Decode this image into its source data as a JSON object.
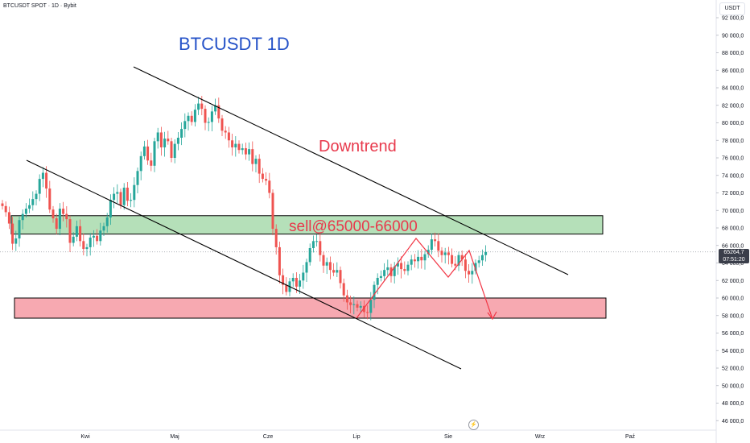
{
  "header": {
    "symbol_line": "BTCUSDT SPOT · 1D · Bybit"
  },
  "currency": "USDT",
  "price_tag": {
    "price": "65264,7",
    "countdown": "07:51:20"
  },
  "annotations": {
    "title": "BTCUSDT 1D",
    "downtrend": "Downtrend",
    "sell": "sell@65000-66000",
    "lightning_icon": "lightning-icon"
  },
  "colors": {
    "up": "#26a69a",
    "down": "#ef5350",
    "green_zone": "#b5e0b9",
    "red_zone": "#f7a9b1",
    "title": "#2552c8",
    "annotation_red": "#e8394c"
  },
  "chart_data": {
    "type": "candlestick",
    "x_ticks": [
      "Kwi",
      "Maj",
      "Cze",
      "Lip",
      "Sie",
      "Wrz",
      "Paź"
    ],
    "y_ticks": [
      "92 000,0",
      "90 000,0",
      "88 000,0",
      "86 000,0",
      "84 000,0",
      "82 000,0",
      "80 000,0",
      "78 000,0",
      "76 000,0",
      "74 000,0",
      "72 000,0",
      "70 000,0",
      "68 000,0",
      "66 000,0",
      "64 000,0",
      "62 000,0",
      "60 000,0",
      "58 000,0",
      "56 000,0",
      "54 000,0",
      "52 000,0",
      "50 000,0",
      "48 000,0",
      "46 000,0"
    ],
    "y_tick_values": [
      92000,
      90000,
      88000,
      86000,
      84000,
      82000,
      80000,
      78000,
      76000,
      74000,
      72000,
      70000,
      68000,
      66000,
      64000,
      62000,
      60000,
      58000,
      56000,
      54000,
      52000,
      50000,
      48000,
      46000
    ],
    "ylim": [
      45000,
      93000
    ],
    "last_price": 65264.7,
    "candles_close": [
      70500,
      69800,
      68500,
      66200,
      66800,
      68900,
      69600,
      70200,
      70600,
      71300,
      71900,
      73600,
      74300,
      72500,
      70100,
      69100,
      67900,
      70200,
      69600,
      69000,
      66300,
      67000,
      68200,
      66500,
      65600,
      65800,
      66900,
      67100,
      66500,
      67700,
      68200,
      69200,
      71200,
      71900,
      72100,
      70600,
      72600,
      71100,
      71200,
      72900,
      74500,
      76200,
      77300,
      75700,
      75100,
      77900,
      78900,
      77200,
      78200,
      77900,
      76000,
      77600,
      78300,
      79300,
      80200,
      80800,
      80100,
      81500,
      82200,
      81600,
      80000,
      80100,
      81300,
      82000,
      80500,
      79100,
      78900,
      78000,
      77200,
      77600,
      76900,
      77100,
      76400,
      77000,
      75300,
      75900,
      74200,
      73600,
      73400,
      72000,
      67900,
      65800,
      62600,
      61500,
      60700,
      61900,
      62300,
      61300,
      62000,
      62900,
      64100,
      65700,
      66500,
      66500,
      64900,
      63700,
      64100,
      63200,
      62900,
      63200,
      61700,
      60300,
      59500,
      59200,
      59300,
      58900,
      59100,
      58400,
      58300,
      59800,
      61500,
      62300,
      62500,
      63200,
      63500,
      62500,
      63600,
      64000,
      63300,
      63100,
      63800,
      64400,
      64200,
      64700,
      64300,
      65000,
      65500,
      66700,
      66500,
      65400,
      64900,
      65200,
      64900,
      63900,
      63700,
      64900,
      64400,
      63100,
      62700,
      63100,
      64000,
      64300,
      64900,
      65264.7
    ],
    "zones": [
      {
        "name": "supply",
        "low": 67300,
        "high": 69400
      },
      {
        "name": "demand",
        "low": 57700,
        "high": 60000
      }
    ],
    "trendlines": [
      {
        "name": "upper",
        "from": [
          "start",
          86000
        ],
        "to": [
          "Sie",
          62500
        ]
      },
      {
        "name": "lower",
        "from": [
          "start",
          75800
        ],
        "to": [
          "Sie",
          52000
        ]
      }
    ]
  }
}
